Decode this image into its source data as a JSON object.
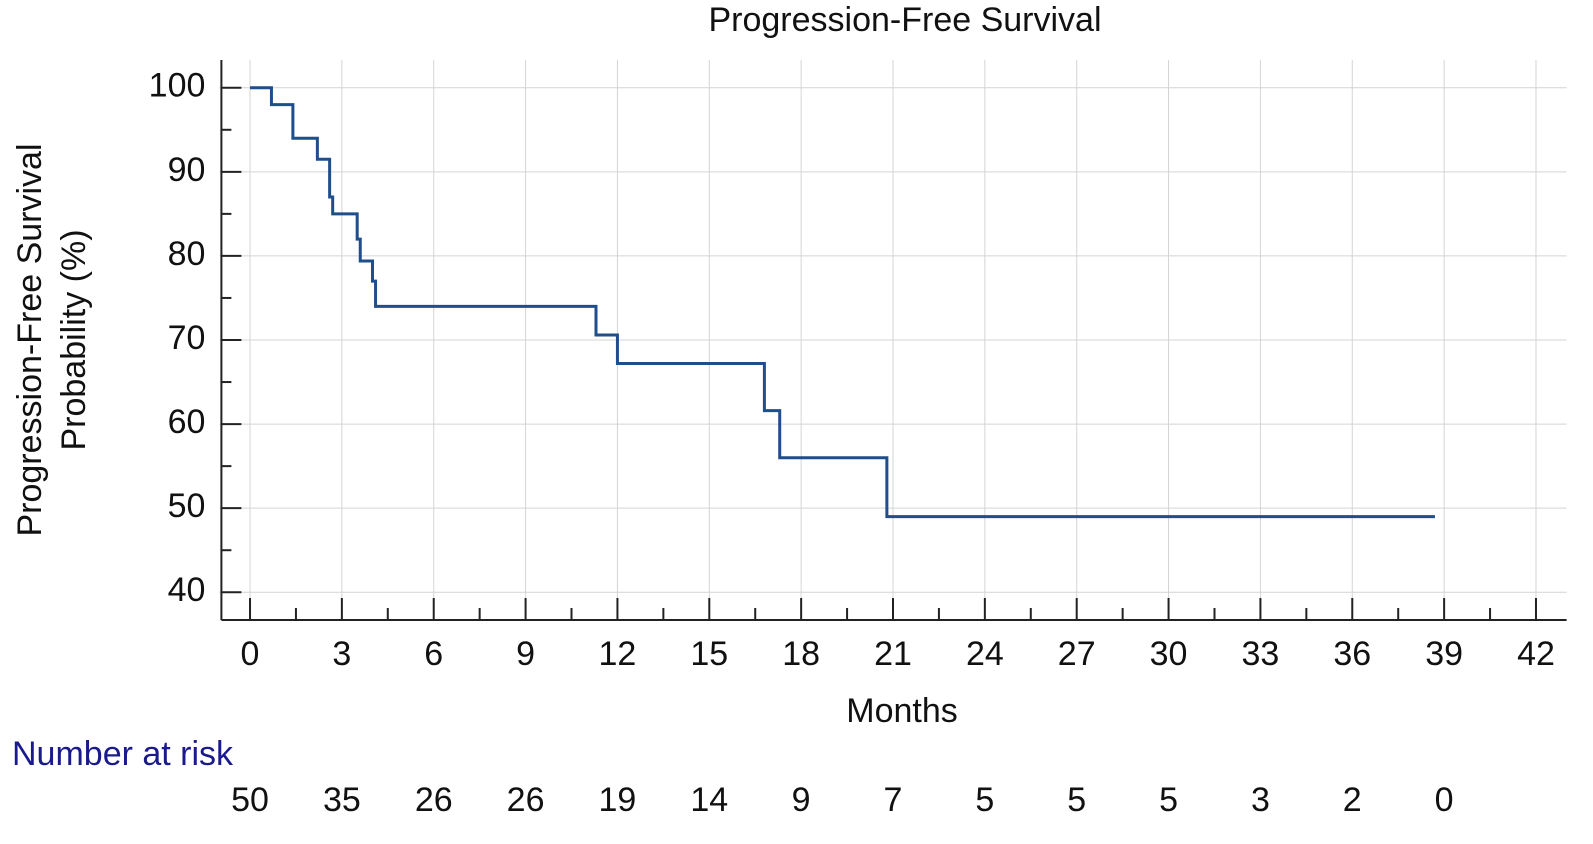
{
  "chart_data": {
    "type": "line",
    "step": "post",
    "title": "Progression-Free Survival",
    "xlabel": "Months",
    "ylabel": [
      "Progression-Free Survival",
      "Probability (%)"
    ],
    "x": [
      0,
      0.7,
      1.4,
      2.2,
      2.6,
      2.7,
      3.5,
      3.6,
      4.0,
      4.1,
      11.3,
      12.0,
      16.8,
      17.3,
      20.8,
      38.7
    ],
    "series": [
      {
        "name": "Progression-Free Survival",
        "color": "#1f4e8c",
        "values": [
          100,
          98,
          94,
          91.5,
          87,
          85,
          82,
          79.4,
          77,
          74,
          70.6,
          67.2,
          61.6,
          56,
          49,
          49
        ]
      }
    ],
    "xlim": [
      -1,
      43
    ],
    "ylim": [
      36.7,
      103.3
    ],
    "xticks": [
      0,
      3,
      6,
      9,
      12,
      15,
      18,
      21,
      24,
      27,
      30,
      33,
      36,
      39,
      42
    ],
    "yticks": [
      40,
      50,
      60,
      70,
      80,
      90,
      100
    ],
    "grid": true,
    "risk_table": {
      "title": "Number at risk",
      "title_color": "#1a1a8c",
      "times": [
        0,
        3,
        6,
        9,
        12,
        15,
        18,
        21,
        24,
        27,
        30,
        33,
        36,
        39
      ],
      "counts": [
        "50",
        "35",
        "26",
        "26",
        "19",
        "14",
        "9",
        "7",
        "5",
        "5",
        "5",
        "3",
        "2",
        "0"
      ]
    }
  }
}
